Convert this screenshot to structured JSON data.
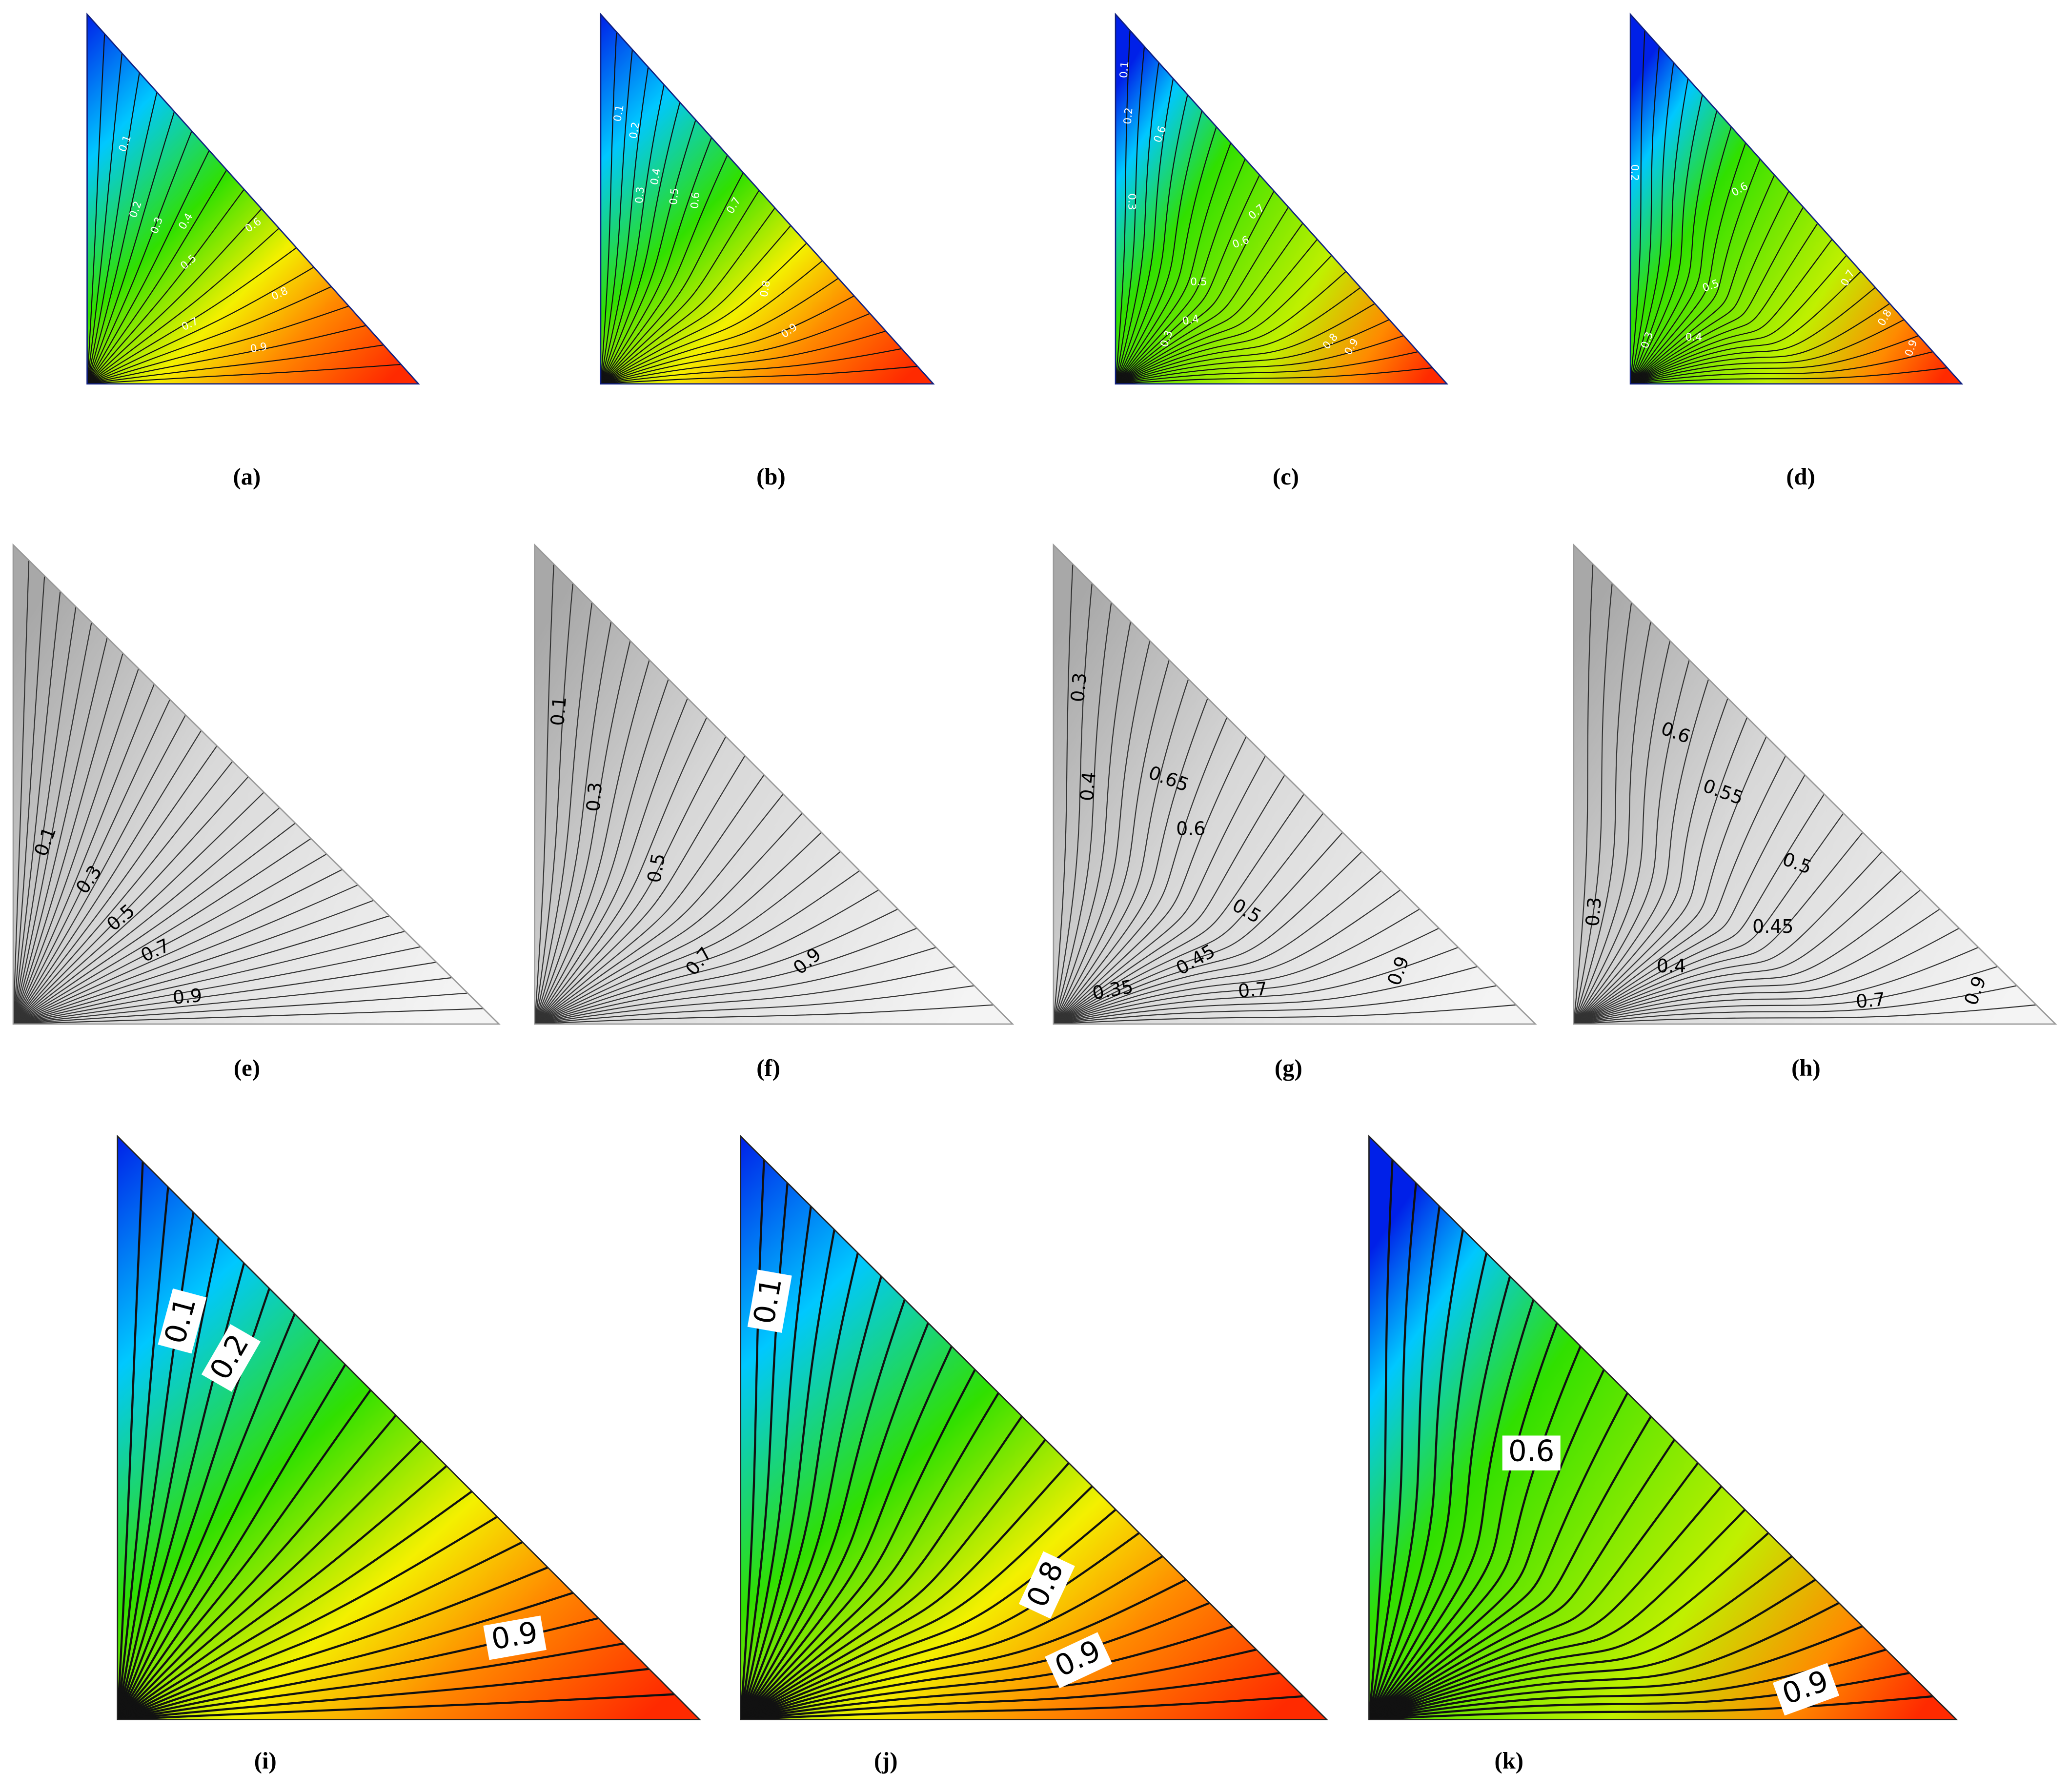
{
  "panels": [
    {
      "caption": "(a)",
      "contour_labels": [
        "0.1",
        "0.2",
        "0.3",
        "0.4",
        "0.5",
        "0.6",
        "0.7",
        "0.8",
        "0.9"
      ]
    },
    {
      "caption": "(b)",
      "contour_labels": [
        "0.1",
        "0.2",
        "0.3",
        "0.4",
        "0.5",
        "0.6",
        "0.7",
        "0.8",
        "0.9"
      ]
    },
    {
      "caption": "(c)",
      "contour_labels": [
        "0.1",
        "0.2",
        "0.3",
        "0.6",
        "0.7",
        "0.6",
        "0.5",
        "0.4",
        "0.3",
        "0.8",
        "0.9"
      ]
    },
    {
      "caption": "(d)",
      "contour_labels": [
        "0.2",
        "0.6",
        "0.5",
        "0.7",
        "0.8",
        "0.3",
        "0.4",
        "0.9"
      ]
    },
    {
      "caption": "(e)",
      "contour_labels": [
        "0.1",
        "0.3",
        "0.5",
        "0.7",
        "0.9"
      ]
    },
    {
      "caption": "(f)",
      "contour_labels": [
        "0.1",
        "0.3",
        "0.5",
        "0.7",
        "0.9"
      ]
    },
    {
      "caption": "(g)",
      "contour_labels": [
        "0.3",
        "0.4",
        "0.65",
        "0.6",
        "0.5",
        "0.45",
        "0.35",
        "0.7",
        "0.9"
      ]
    },
    {
      "caption": "(h)",
      "contour_labels": [
        "0.6",
        "0.55",
        "0.5",
        "0.45",
        "0.4",
        "0.3",
        "0.7",
        "0.9"
      ]
    },
    {
      "caption": "(i)",
      "contour_labels": [
        "0.1",
        "0.2",
        "0.9"
      ]
    },
    {
      "caption": "(j)",
      "contour_labels": [
        "0.1",
        "0.8",
        "0.9"
      ]
    },
    {
      "caption": "(k)",
      "contour_labels": [
        "0.6",
        "0.9"
      ]
    }
  ]
}
